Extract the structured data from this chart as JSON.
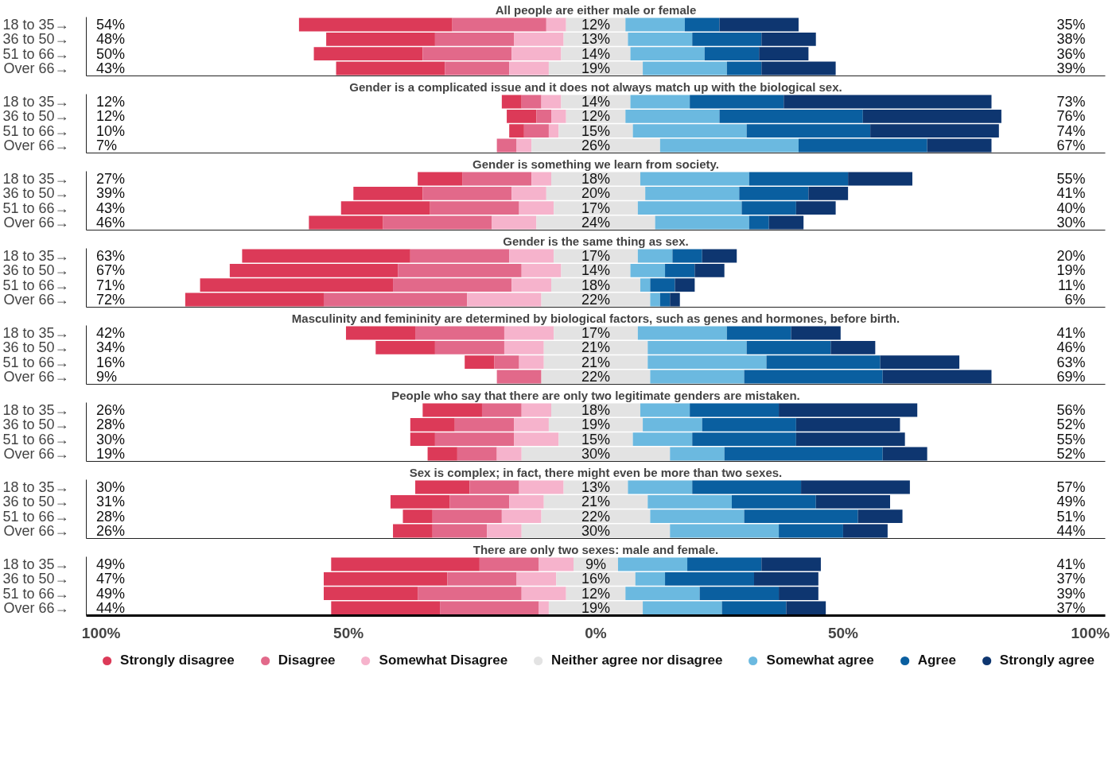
{
  "chart_data": [
    {
      "type": "bar",
      "orientation": "horizontal",
      "title": "All people are either male or female",
      "categories": [
        "18 to 35→",
        "36 to 50→",
        "51 to 66→",
        "Over 66→"
      ],
      "xlim": [
        -103,
        103
      ],
      "tick_labels": "y",
      "series": [
        {
          "color": "#dc3a58",
          "values": [
            31,
            22,
            22,
            22
          ],
          "base": [
            -60,
            -54.5,
            -57,
            -52.5
          ]
        },
        {
          "color": "#e2698a",
          "values": [
            19,
            16,
            18,
            13
          ],
          "base": [
            -29,
            -32.5,
            -35,
            -30.5
          ]
        },
        {
          "color": "#f6b3cc",
          "values": [
            4,
            10,
            10,
            8
          ],
          "base": [
            -10,
            -16.5,
            -17,
            -17.5
          ]
        },
        {
          "color": "#e3e3e3",
          "values": [
            12,
            13,
            14,
            19
          ],
          "base": [
            -6,
            -6.5,
            -7,
            -9.5
          ],
          "value_labels": [
            "12%",
            "13%",
            "14%",
            "19%"
          ]
        },
        {
          "color": "#6bb9e0",
          "values": [
            12,
            13,
            15,
            17
          ],
          "base": [
            6,
            6.5,
            7,
            9.5
          ]
        },
        {
          "color": "#0a5fa0",
          "values": [
            7,
            14,
            11,
            7
          ],
          "base": [
            18,
            19.5,
            22,
            26.5
          ]
        },
        {
          "color": "#0e3670",
          "values": [
            16,
            11,
            10,
            15
          ],
          "base": [
            25,
            33.5,
            33,
            33.5
          ]
        }
      ],
      "annotations": [
        "54%",
        "48%",
        "50%",
        "43%",
        "35%",
        "38%",
        "36%",
        "39%"
      ]
    },
    {
      "type": "bar",
      "orientation": "horizontal",
      "title": "Gender is a complicated issue and it does not always match up with the biological sex.",
      "categories": [
        "18 to 35→",
        "36 to 50→",
        "51 to 66→",
        "Over 66→"
      ],
      "xlim": [
        -103,
        103
      ],
      "tick_labels": "y",
      "series": [
        {
          "color": "#dc3a58",
          "values": [
            4,
            6,
            3,
            null
          ],
          "base": [
            -19,
            -18,
            -17.5,
            null
          ]
        },
        {
          "color": "#e2698a",
          "values": [
            4,
            3,
            5,
            4
          ],
          "base": [
            -15,
            -12,
            -14.5,
            -20
          ]
        },
        {
          "color": "#f6b3cc",
          "values": [
            4,
            3,
            2,
            3
          ],
          "base": [
            -11,
            -9,
            -9.5,
            -16
          ]
        },
        {
          "color": "#e3e3e3",
          "values": [
            14,
            12,
            15,
            26
          ],
          "base": [
            -7,
            -6,
            -7.5,
            -13
          ],
          "value_labels": [
            "14%",
            "12%",
            "15%",
            "26%"
          ]
        },
        {
          "color": "#6bb9e0",
          "values": [
            12,
            19,
            23,
            28
          ],
          "base": [
            7,
            6,
            7.5,
            13
          ]
        },
        {
          "color": "#0a5fa0",
          "values": [
            19,
            29,
            25,
            26
          ],
          "base": [
            19,
            25,
            30.5,
            41
          ]
        },
        {
          "color": "#0e3670",
          "values": [
            42,
            28,
            26,
            13
          ],
          "base": [
            38,
            54,
            55.5,
            67
          ]
        }
      ],
      "annotations": [
        "12%",
        "12%",
        "10%",
        "7%",
        "73%",
        "76%",
        "74%",
        "67%"
      ]
    },
    {
      "type": "bar",
      "orientation": "horizontal",
      "title": "Gender is something we learn from society.",
      "categories": [
        "18 to 35→",
        "36 to 50→",
        "51 to 66→",
        "Over 66→"
      ],
      "xlim": [
        -103,
        103
      ],
      "tick_labels": "y",
      "series": [
        {
          "color": "#dc3a58",
          "values": [
            9,
            14,
            18,
            15
          ],
          "base": [
            -36,
            -49,
            -51.5,
            -58
          ]
        },
        {
          "color": "#e2698a",
          "values": [
            14,
            18,
            18,
            22
          ],
          "base": [
            -27,
            -35,
            -33.5,
            -43
          ]
        },
        {
          "color": "#f6b3cc",
          "values": [
            4,
            7,
            7,
            9
          ],
          "base": [
            -13,
            -17,
            -15.5,
            -21
          ]
        },
        {
          "color": "#e3e3e3",
          "values": [
            18,
            20,
            17,
            24
          ],
          "base": [
            -9,
            -10,
            -8.5,
            -12
          ],
          "value_labels": [
            "18%",
            "20%",
            "17%",
            "24%"
          ]
        },
        {
          "color": "#6bb9e0",
          "values": [
            22,
            19,
            21,
            19
          ],
          "base": [
            9,
            10,
            8.5,
            12
          ]
        },
        {
          "color": "#0a5fa0",
          "values": [
            20,
            14,
            11,
            4
          ],
          "base": [
            31,
            29,
            29.5,
            31
          ]
        },
        {
          "color": "#0e3670",
          "values": [
            13,
            8,
            8,
            7
          ],
          "base": [
            51,
            43,
            40.5,
            35
          ]
        }
      ],
      "annotations": [
        "27%",
        "39%",
        "43%",
        "46%",
        "55%",
        "41%",
        "40%",
        "30%"
      ]
    },
    {
      "type": "bar",
      "orientation": "horizontal",
      "title": "Gender is the same thing as sex.",
      "categories": [
        "18 to 35→",
        "36 to 50→",
        "51 to 66→",
        "Over 66→"
      ],
      "xlim": [
        -103,
        103
      ],
      "tick_labels": "y",
      "series": [
        {
          "color": "#dc3a58",
          "values": [
            34,
            34,
            39,
            28
          ],
          "base": [
            -71.5,
            -74,
            -80,
            -83
          ]
        },
        {
          "color": "#e2698a",
          "values": [
            20,
            25,
            24,
            29
          ],
          "base": [
            -37.5,
            -40,
            -41,
            -55
          ]
        },
        {
          "color": "#f6b3cc",
          "values": [
            9,
            8,
            8,
            15
          ],
          "base": [
            -17.5,
            -15,
            -17,
            -26
          ]
        },
        {
          "color": "#e3e3e3",
          "values": [
            17,
            14,
            18,
            22
          ],
          "base": [
            -8.5,
            -7,
            -9,
            -11
          ],
          "value_labels": [
            "17%",
            "14%",
            "18%",
            "22%"
          ]
        },
        {
          "color": "#6bb9e0",
          "values": [
            7,
            7,
            2,
            2
          ],
          "base": [
            8.5,
            7,
            9,
            11
          ]
        },
        {
          "color": "#0a5fa0",
          "values": [
            6,
            6,
            5,
            2
          ],
          "base": [
            15.5,
            14,
            11,
            13
          ]
        },
        {
          "color": "#0e3670",
          "values": [
            7,
            6,
            4,
            2
          ],
          "base": [
            21.5,
            20,
            16,
            15
          ]
        }
      ],
      "annotations": [
        "63%",
        "67%",
        "71%",
        "72%",
        "20%",
        "19%",
        "11%",
        "6%"
      ]
    },
    {
      "type": "bar",
      "orientation": "horizontal",
      "title": "Masculinity and femininity are determined by biological factors, such as genes and hormones, before birth.",
      "categories": [
        "18 to 35→",
        "36 to 50→",
        "51 to 66→",
        "Over 66→"
      ],
      "xlim": [
        -103,
        103
      ],
      "tick_labels": "y",
      "series": [
        {
          "color": "#dc3a58",
          "values": [
            14,
            12,
            6,
            null
          ],
          "base": [
            -50.5,
            -44.5,
            -26.5,
            null
          ]
        },
        {
          "color": "#e2698a",
          "values": [
            18,
            14,
            5,
            9
          ],
          "base": [
            -36.5,
            -32.5,
            -20.5,
            -20
          ]
        },
        {
          "color": "#f6b3cc",
          "values": [
            10,
            8,
            5,
            null
          ],
          "base": [
            -18.5,
            -18.5,
            -15.5,
            null
          ]
        },
        {
          "color": "#e3e3e3",
          "values": [
            17,
            21,
            21,
            22
          ],
          "base": [
            -8.5,
            -10.5,
            -10.5,
            -11
          ],
          "value_labels": [
            "17%",
            "21%",
            "21%",
            "22%"
          ]
        },
        {
          "color": "#6bb9e0",
          "values": [
            18,
            20,
            24,
            19
          ],
          "base": [
            8.5,
            10.5,
            10.5,
            11
          ]
        },
        {
          "color": "#0a5fa0",
          "values": [
            13,
            17,
            23,
            28
          ],
          "base": [
            26.5,
            30.5,
            34.5,
            30
          ]
        },
        {
          "color": "#0e3670",
          "values": [
            10,
            9,
            16,
            22
          ],
          "base": [
            39.5,
            47.5,
            57.5,
            58
          ]
        }
      ],
      "annotations": [
        "42%",
        "34%",
        "16%",
        "9%",
        "41%",
        "46%",
        "63%",
        "69%"
      ]
    },
    {
      "type": "bar",
      "orientation": "horizontal",
      "title": "People who say that there are only two legitimate genders are mistaken.",
      "categories": [
        "18 to 35→",
        "36 to 50→",
        "51 to 66→",
        "Over 66→"
      ],
      "xlim": [
        -103,
        103
      ],
      "tick_labels": "y",
      "series": [
        {
          "color": "#dc3a58",
          "values": [
            12,
            9,
            5,
            6
          ],
          "base": [
            -35,
            -37.5,
            -37.5,
            -34
          ]
        },
        {
          "color": "#e2698a",
          "values": [
            8,
            12,
            16,
            8
          ],
          "base": [
            -23,
            -28.5,
            -32.5,
            -28
          ]
        },
        {
          "color": "#f6b3cc",
          "values": [
            6,
            7,
            9,
            5
          ],
          "base": [
            -15,
            -16.5,
            -16.5,
            -20
          ]
        },
        {
          "color": "#e3e3e3",
          "values": [
            18,
            19,
            15,
            30
          ],
          "base": [
            -9,
            -9.5,
            -7.5,
            -15
          ],
          "value_labels": [
            "18%",
            "19%",
            "15%",
            "30%"
          ]
        },
        {
          "color": "#6bb9e0",
          "values": [
            10,
            12,
            12,
            11
          ],
          "base": [
            9,
            9.5,
            7.5,
            15
          ]
        },
        {
          "color": "#0a5fa0",
          "values": [
            18,
            19,
            21,
            32
          ],
          "base": [
            19,
            21.5,
            19.5,
            26
          ]
        },
        {
          "color": "#0e3670",
          "values": [
            28,
            21,
            22,
            9
          ],
          "base": [
            37,
            40.5,
            40.5,
            58
          ]
        }
      ],
      "annotations": [
        "26%",
        "28%",
        "30%",
        "19%",
        "56%",
        "52%",
        "55%",
        "52%"
      ]
    },
    {
      "type": "bar",
      "orientation": "horizontal",
      "title": "Sex is complex; in fact, there might even be more than two sexes.",
      "categories": [
        "18 to 35→",
        "36 to 50→",
        "51 to 66→",
        "Over 66→"
      ],
      "xlim": [
        -103,
        103
      ],
      "tick_labels": "y",
      "series": [
        {
          "color": "#dc3a58",
          "values": [
            11,
            12,
            6,
            8
          ],
          "base": [
            -36.5,
            -41.5,
            -39,
            -41
          ]
        },
        {
          "color": "#e2698a",
          "values": [
            10,
            12,
            14,
            11
          ],
          "base": [
            -25.5,
            -29.5,
            -33,
            -33
          ]
        },
        {
          "color": "#f6b3cc",
          "values": [
            9,
            7,
            8,
            7
          ],
          "base": [
            -15.5,
            -17.5,
            -19,
            -22
          ]
        },
        {
          "color": "#e3e3e3",
          "values": [
            13,
            21,
            22,
            30
          ],
          "base": [
            -6.5,
            -10.5,
            -11,
            -15
          ],
          "value_labels": [
            "13%",
            "21%",
            "22%",
            "30%"
          ]
        },
        {
          "color": "#6bb9e0",
          "values": [
            13,
            17,
            19,
            22
          ],
          "base": [
            6.5,
            10.5,
            11,
            15
          ]
        },
        {
          "color": "#0a5fa0",
          "values": [
            22,
            17,
            23,
            13
          ],
          "base": [
            19.5,
            27.5,
            30,
            37
          ]
        },
        {
          "color": "#0e3670",
          "values": [
            22,
            15,
            9,
            9
          ],
          "base": [
            41.5,
            44.5,
            53,
            50
          ]
        }
      ],
      "annotations": [
        "30%",
        "31%",
        "28%",
        "26%",
        "57%",
        "49%",
        "51%",
        "44%"
      ]
    },
    {
      "type": "bar",
      "orientation": "horizontal",
      "title": "There are only two sexes: male and female.",
      "categories": [
        "18 to 35→",
        "36 to 50→",
        "51 to 66→",
        "Over 66→"
      ],
      "xlim": [
        -103,
        103
      ],
      "xticks": [
        {
          "value": -100,
          "label": "100%"
        },
        {
          "value": -50,
          "label": "50%"
        },
        {
          "value": 0,
          "label": "0%"
        },
        {
          "value": 50,
          "label": "50%"
        },
        {
          "value": 100,
          "label": "100%"
        }
      ],
      "legend": "bottom",
      "series": [
        {
          "name": "Strongly disagree",
          "color": "#dc3a58",
          "values": [
            30,
            25,
            19,
            22
          ],
          "base": [
            -53.5,
            -55,
            -55,
            -53.5
          ]
        },
        {
          "name": "Disagree",
          "color": "#e2698a",
          "values": [
            12,
            14,
            21,
            20
          ],
          "base": [
            -23.5,
            -30,
            -36,
            -31.5
          ]
        },
        {
          "name": "Somewhat Disagree",
          "color": "#f6b3cc",
          "values": [
            7,
            8,
            9,
            2
          ],
          "base": [
            -11.5,
            -16,
            -15,
            -11.5
          ]
        },
        {
          "name": "Neither agree nor disagree",
          "color": "#e3e3e3",
          "values": [
            9,
            16,
            12,
            19
          ],
          "base": [
            -4.5,
            -8,
            -6,
            -9.5
          ],
          "value_labels": [
            "9%",
            "16%",
            "12%",
            "19%"
          ]
        },
        {
          "name": "Somewhat agree",
          "color": "#6bb9e0",
          "values": [
            14,
            6,
            15,
            16
          ],
          "base": [
            4.5,
            8,
            6,
            9.5
          ]
        },
        {
          "name": "Agree",
          "color": "#0a5fa0",
          "values": [
            15,
            18,
            16,
            13
          ],
          "base": [
            18.5,
            14,
            21,
            25.5
          ]
        },
        {
          "name": "Strongly agree",
          "color": "#0e3670",
          "values": [
            12,
            13,
            8,
            8
          ],
          "base": [
            33.5,
            32,
            37,
            38.5
          ]
        }
      ],
      "annotations": [
        "49%",
        "47%",
        "49%",
        "44%",
        "41%",
        "37%",
        "39%",
        "37%"
      ]
    }
  ]
}
